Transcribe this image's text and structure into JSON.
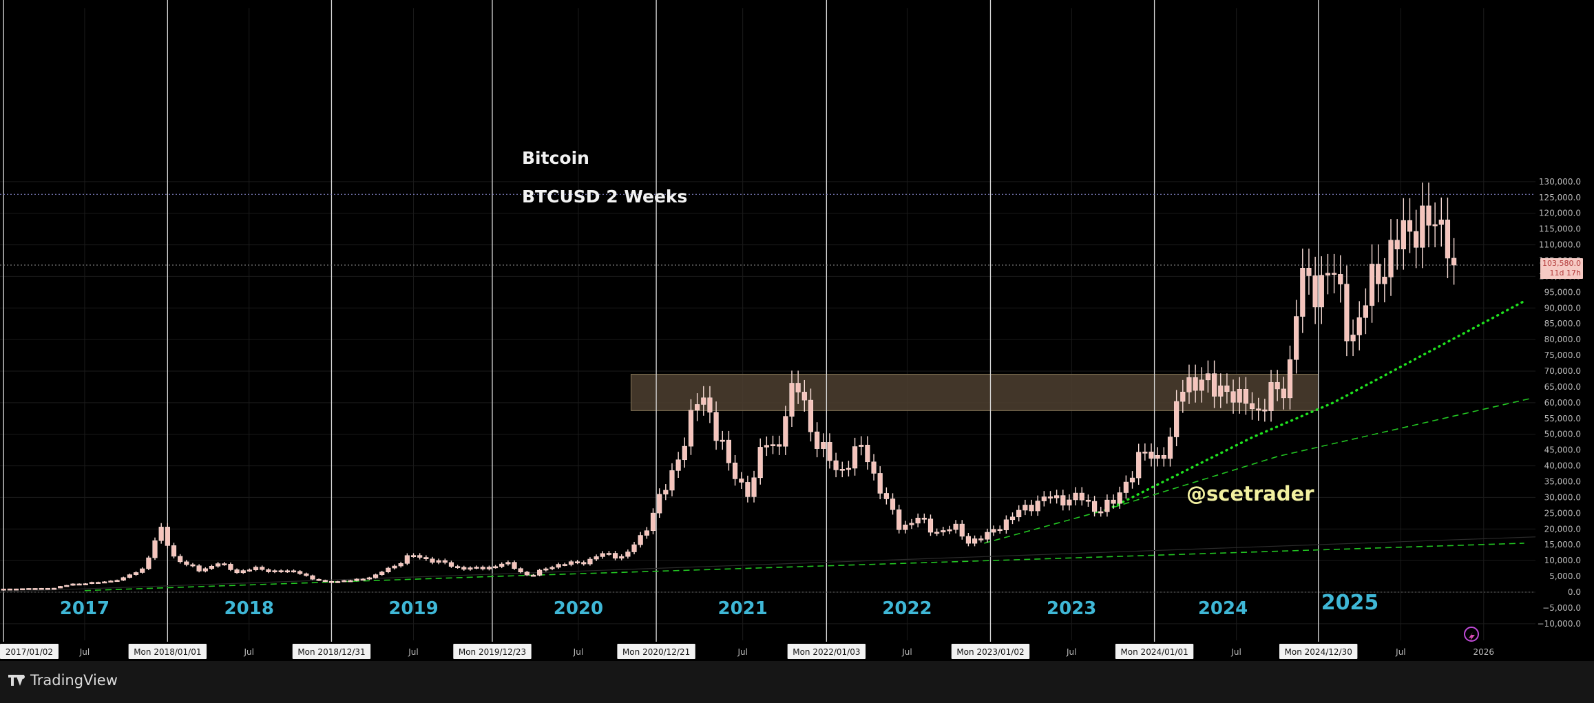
{
  "chart_data": {
    "type": "bar",
    "title": "Bitcoin",
    "subtitle": "BTCUSD 2 Weeks",
    "watermark": "@scetrader",
    "ylim": [
      -10000,
      130000
    ],
    "y_tick_step": 5000,
    "y_tick_format": "comma_1dp",
    "x_range": [
      "2016-12-25",
      "2026-04-26"
    ],
    "last_price_label": "103,580.0",
    "countdown_label": "11d 17h",
    "last_price": 103580,
    "dotted_reference_level": 126000,
    "resistance_zone": {
      "from": "2020-10-26",
      "to": "2024-12-30",
      "low": 57500,
      "high": 69000
    },
    "year_boundaries": [
      "2017-01-02",
      "2018-01-01",
      "2018-12-31",
      "2019-12-23",
      "2020-12-21",
      "2022-01-03",
      "2023-01-02",
      "2024-01-01",
      "2024-12-30"
    ],
    "x_tick_labels": [
      {
        "date": "2017-01-02",
        "text": "2017/01/02",
        "boxed": true
      },
      {
        "date": "2017-07-01",
        "text": "Jul",
        "boxed": false
      },
      {
        "date": "2018-01-01",
        "text": "Mon 2018/01/01",
        "boxed": true
      },
      {
        "date": "2018-07-01",
        "text": "Jul",
        "boxed": false
      },
      {
        "date": "2018-12-31",
        "text": "Mon 2018/12/31",
        "boxed": true
      },
      {
        "date": "2019-07-01",
        "text": "Jul",
        "boxed": false
      },
      {
        "date": "2019-12-23",
        "text": "Mon 2019/12/23",
        "boxed": true
      },
      {
        "date": "2020-07-01",
        "text": "Jul",
        "boxed": false
      },
      {
        "date": "2020-12-21",
        "text": "Mon 2020/12/21",
        "boxed": true
      },
      {
        "date": "2021-07-01",
        "text": "Jul",
        "boxed": false
      },
      {
        "date": "2022-01-03",
        "text": "Mon 2022/01/03",
        "boxed": true
      },
      {
        "date": "2022-07-01",
        "text": "Jul",
        "boxed": false
      },
      {
        "date": "2023-01-02",
        "text": "Mon 2023/01/02",
        "boxed": true
      },
      {
        "date": "2023-07-01",
        "text": "Jul",
        "boxed": false
      },
      {
        "date": "2024-01-01",
        "text": "Mon 2024/01/01",
        "boxed": true
      },
      {
        "date": "2024-07-01",
        "text": "Jul",
        "boxed": false
      },
      {
        "date": "2024-12-30",
        "text": "Mon 2024/12/30",
        "boxed": true
      },
      {
        "date": "2025-07-01",
        "text": "Jul",
        "boxed": false
      },
      {
        "date": "2026-01-01",
        "text": "2026",
        "boxed": false
      }
    ],
    "year_labels": [
      {
        "date": "2017-07-01",
        "text": "2017"
      },
      {
        "date": "2018-07-01",
        "text": "2018"
      },
      {
        "date": "2019-07-01",
        "text": "2019"
      },
      {
        "date": "2020-07-01",
        "text": "2020"
      },
      {
        "date": "2021-07-01",
        "text": "2021"
      },
      {
        "date": "2022-07-01",
        "text": "2022"
      },
      {
        "date": "2023-07-01",
        "text": "2023"
      },
      {
        "date": "2024-06-01",
        "text": "2024"
      },
      {
        "date": "2025-03-10",
        "text": "2025"
      }
    ],
    "trend_lines": [
      {
        "name": "",
        "style": "dashed",
        "points": [
          [
            "2017-07-01",
            500
          ],
          [
            "2020-01-01",
            5000
          ],
          [
            "2023-01-02",
            10000
          ],
          [
            "2026-04-01",
            15500
          ]
        ]
      },
      {
        "name": "",
        "style": "dashed",
        "points": [
          [
            "2022-12-19",
            15500
          ],
          [
            "2023-09-01",
            25500
          ],
          [
            "2024-10-01",
            43000
          ],
          [
            "2026-04-20",
            61500
          ]
        ]
      },
      {
        "name": "",
        "style": "dotted",
        "points": [
          [
            "2023-10-01",
            27000
          ],
          [
            "2024-08-05",
            49000
          ],
          [
            "2025-02-01",
            60000
          ],
          [
            "2026-03-30",
            92000
          ]
        ]
      },
      {
        "name": "",
        "style": "faint",
        "points": [
          [
            "2016-12-25",
            100
          ],
          [
            "2026-04-26",
            17500
          ]
        ]
      }
    ],
    "anchors": [
      [
        "2017-01-02",
        1000
      ],
      [
        "2017-02-27",
        1150
      ],
      [
        "2017-04-24",
        1300
      ],
      [
        "2017-06-05",
        2600
      ],
      [
        "2017-07-31",
        3000
      ],
      [
        "2017-09-25",
        4300
      ],
      [
        "2017-11-06",
        7500
      ],
      [
        "2017-12-18",
        19500
      ],
      [
        "2018-01-15",
        11500
      ],
      [
        "2018-02-12",
        8500
      ],
      [
        "2018-03-12",
        7000
      ],
      [
        "2018-04-23",
        9000
      ],
      [
        "2018-06-04",
        6500
      ],
      [
        "2018-07-16",
        7400
      ],
      [
        "2018-09-10",
        6500
      ],
      [
        "2018-10-22",
        6400
      ],
      [
        "2018-11-19",
        4000
      ],
      [
        "2018-12-17",
        3300
      ],
      [
        "2019-02-11",
        3600
      ],
      [
        "2019-04-08",
        5200
      ],
      [
        "2019-05-13",
        8000
      ],
      [
        "2019-06-24",
        11500
      ],
      [
        "2019-08-05",
        10500
      ],
      [
        "2019-09-30",
        8000
      ],
      [
        "2019-11-25",
        7300
      ],
      [
        "2020-01-20",
        9200
      ],
      [
        "2020-03-16",
        5000
      ],
      [
        "2020-05-11",
        8800
      ],
      [
        "2020-07-06",
        9200
      ],
      [
        "2020-08-17",
        11800
      ],
      [
        "2020-10-12",
        11500
      ],
      [
        "2020-11-23",
        18000
      ],
      [
        "2020-12-21",
        29000
      ],
      [
        "2021-01-18",
        33000
      ],
      [
        "2021-02-15",
        47000
      ],
      [
        "2021-03-15",
        58000
      ],
      [
        "2021-04-12",
        60000
      ],
      [
        "2021-05-10",
        50000
      ],
      [
        "2021-06-07",
        36000
      ],
      [
        "2021-07-05",
        34000
      ],
      [
        "2021-07-19",
        32000
      ],
      [
        "2021-08-16",
        47000
      ],
      [
        "2021-09-13",
        46000
      ],
      [
        "2021-10-11",
        60000
      ],
      [
        "2021-11-08",
        65000
      ],
      [
        "2021-12-06",
        49000
      ],
      [
        "2022-01-03",
        42000
      ],
      [
        "2022-01-31",
        39000
      ],
      [
        "2022-02-28",
        42000
      ],
      [
        "2022-03-28",
        46000
      ],
      [
        "2022-05-09",
        30000
      ],
      [
        "2022-06-13",
        21000
      ],
      [
        "2022-07-25",
        23000
      ],
      [
        "2022-08-22",
        20000
      ],
      [
        "2022-09-19",
        19500
      ],
      [
        "2022-10-17",
        20000
      ],
      [
        "2022-11-14",
        16500
      ],
      [
        "2022-12-19",
        16800
      ],
      [
        "2023-01-16",
        21000
      ],
      [
        "2023-02-27",
        24000
      ],
      [
        "2023-03-27",
        28000
      ],
      [
        "2023-04-24",
        29000
      ],
      [
        "2023-06-19",
        30000
      ],
      [
        "2023-07-17",
        29500
      ],
      [
        "2023-08-28",
        26500
      ],
      [
        "2023-10-09",
        28000
      ],
      [
        "2023-10-23",
        34500
      ],
      [
        "2023-12-04",
        43000
      ],
      [
        "2024-01-01",
        43000
      ],
      [
        "2024-02-05",
        47000
      ],
      [
        "2024-02-26",
        62000
      ],
      [
        "2024-03-11",
        69000
      ],
      [
        "2024-04-08",
        67000
      ],
      [
        "2024-05-06",
        63000
      ],
      [
        "2024-06-03",
        68000
      ],
      [
        "2024-07-01",
        58000
      ],
      [
        "2024-07-29",
        62000
      ],
      [
        "2024-08-26",
        57000
      ],
      [
        "2024-09-23",
        63000
      ],
      [
        "2024-10-21",
        67000
      ],
      [
        "2024-11-04",
        80000
      ],
      [
        "2024-11-18",
        97000
      ],
      [
        "2024-12-16",
        97000
      ],
      [
        "2025-01-13",
        102000
      ],
      [
        "2025-02-10",
        96000
      ],
      [
        "2025-03-10",
        83000
      ],
      [
        "2025-04-07",
        85000
      ],
      [
        "2025-05-05",
        103000
      ],
      [
        "2025-06-02",
        106000
      ],
      [
        "2025-06-30",
        108000
      ],
      [
        "2025-07-14",
        118000
      ],
      [
        "2025-08-11",
        118000
      ],
      [
        "2025-09-08",
        112000
      ],
      [
        "2025-10-06",
        121000
      ],
      [
        "2025-10-20",
        110000
      ],
      [
        "2025-11-03",
        104000
      ]
    ],
    "last_bar_date": "2025-11-03"
  },
  "footer": {
    "brand_name": "TradingView",
    "brand_icon": "tradingview-logo-icon",
    "replay_icon": "replay-icon"
  },
  "colors": {
    "background": "#000000",
    "candle_fill": "#f5c4bc",
    "candle_stroke": "#faded8",
    "trend_line": "#22c522",
    "dotted_line": "#1fe01f",
    "year_label": "#3fb7d6",
    "watermark": "#f2f0a0",
    "zone_fill": "#4d4030",
    "price_label_bg": "#f6cac4",
    "price_label_text": "#b23b3b",
    "grid": "#1b1b1b",
    "axis_text": "#bbbbbb"
  }
}
